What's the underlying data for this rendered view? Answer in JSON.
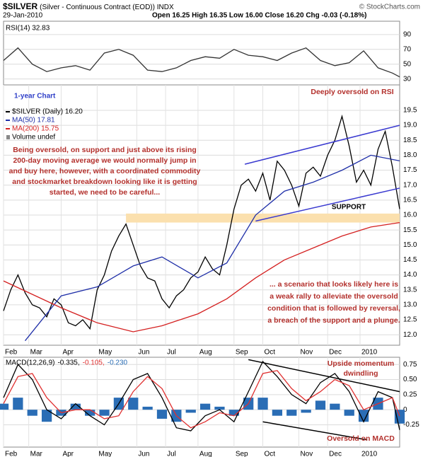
{
  "header": {
    "symbol": "$SILVER",
    "name": "(Silver - Continuous Contract (EOD)) INDX",
    "date": "29-Jan-2010",
    "quote": "Open 16.25 High 16.35 Low 16.00 Close 16.20 Chg -0.03 (-0.18%)",
    "copyright": "© StockCharts.com"
  },
  "chart_data": [
    {
      "type": "line",
      "title": "RSI(14) 32.83",
      "x": [
        0,
        2,
        4,
        6,
        8,
        10,
        12,
        14,
        16,
        18,
        20,
        22,
        24,
        26,
        28,
        30,
        32,
        34,
        36,
        38,
        40,
        42,
        44,
        46,
        48,
        50,
        52,
        54,
        55
      ],
      "series": [
        {
          "name": "RSI(14)",
          "color": "#333333",
          "values": [
            55,
            72,
            50,
            40,
            45,
            48,
            42,
            65,
            70,
            62,
            42,
            40,
            45,
            55,
            60,
            58,
            70,
            62,
            60,
            55,
            65,
            72,
            55,
            48,
            52,
            68,
            45,
            38,
            32.83
          ]
        }
      ],
      "xlim": [
        0,
        55
      ],
      "ylim": [
        22,
        108
      ],
      "yticks": [
        90,
        70,
        50,
        30
      ],
      "grid": true
    },
    {
      "type": "line",
      "x": [
        0,
        1,
        2,
        3,
        4,
        5,
        6,
        7,
        8,
        9,
        10,
        11,
        12,
        13,
        14,
        15,
        16,
        17,
        18,
        19,
        20,
        21,
        22,
        23,
        24,
        25,
        26,
        27,
        28,
        29,
        30,
        31,
        32,
        33,
        34,
        35,
        36,
        37,
        38,
        39,
        40,
        41,
        42,
        43,
        44,
        45,
        46,
        47,
        48,
        49,
        50,
        51,
        52,
        53,
        54,
        55
      ],
      "series": [
        {
          "name": "$SILVER (Daily) 16.20",
          "color": "#000000",
          "values": [
            12.8,
            13.5,
            14.0,
            13.4,
            13.0,
            12.9,
            12.6,
            13.2,
            13.0,
            12.4,
            12.3,
            12.5,
            12.2,
            13.5,
            14.0,
            14.8,
            15.3,
            15.7,
            15.0,
            14.3,
            13.9,
            13.8,
            13.2,
            12.9,
            13.3,
            13.5,
            13.9,
            14.1,
            14.6,
            14.2,
            14.0,
            15.0,
            16.2,
            17.0,
            17.2,
            16.8,
            17.4,
            16.5,
            17.8,
            17.5,
            17.0,
            16.3,
            17.4,
            17.6,
            17.3,
            18.0,
            18.5,
            19.3,
            18.3,
            17.1,
            17.5,
            17.0,
            18.2,
            18.8,
            17.6,
            16.2
          ]
        },
        {
          "name": "MA(50) 17.81",
          "color": "#1f2fa8",
          "x": [
            3,
            8,
            13,
            18,
            22,
            27,
            31,
            35,
            39,
            43,
            47,
            51,
            55
          ],
          "values": [
            11.8,
            13.3,
            13.6,
            14.3,
            14.6,
            13.9,
            14.4,
            16.0,
            16.8,
            17.1,
            17.5,
            18.0,
            17.81
          ]
        },
        {
          "name": "MA(200) 15.75",
          "color": "#d42020",
          "x": [
            0,
            8,
            13,
            18,
            22,
            27,
            31,
            35,
            39,
            43,
            47,
            51,
            55
          ],
          "values": [
            13.8,
            12.9,
            12.4,
            12.1,
            12.3,
            12.7,
            13.2,
            13.9,
            14.5,
            14.9,
            15.3,
            15.6,
            15.75
          ]
        }
      ],
      "legend_extra": "Volume undef",
      "bands": [
        {
          "x": [
            17,
            55
          ],
          "y": [
            15.75,
            16.05
          ],
          "color": "#fbe0ae"
        }
      ],
      "trendlines": [
        {
          "x": [
            33.5,
            55
          ],
          "y": [
            17.7,
            19.0
          ],
          "color": "#3a3ad0"
        },
        {
          "x": [
            35,
            55
          ],
          "y": [
            15.8,
            16.9
          ],
          "color": "#3a3ad0"
        }
      ],
      "annotations": {
        "chart_label": "1-year Chart",
        "rsi_note": "Deeply oversold on RSI",
        "support": "SUPPORT",
        "notes": [
          "Being oversold, on support and just above its rising",
          "200-day moving average we would normally jump in",
          "and buy here, however, with a coordinated commodity",
          "and stockmarket breakdown looking like it is getting",
          "started, we need to be careful..."
        ],
        "scenario": [
          "... a scenario that looks likely here is",
          "a weak rally to alleviate the oversold",
          "condition that is followed by reversal,",
          "a breach of the support and a plunge."
        ]
      },
      "xlim": [
        0,
        55
      ],
      "ylim": [
        11.65,
        20.35
      ],
      "yticks": [
        {
          "value": 19.5,
          "label": "19.5"
        },
        {
          "value": 19,
          "label": "19.0"
        },
        18.5,
        {
          "value": 18,
          "label": "18.0"
        },
        17.5,
        {
          "value": 17,
          "label": "17.0"
        },
        16.5,
        {
          "value": 16,
          "label": "16.0"
        },
        15.5,
        {
          "value": 15,
          "label": "15.0"
        },
        14.5,
        {
          "value": 14,
          "label": "14.0"
        },
        13.5,
        {
          "value": 13,
          "label": "13.0"
        },
        12.5,
        {
          "value": 12,
          "label": "12.0"
        }
      ],
      "xticks": [
        {
          "value": 0,
          "label": "Feb"
        },
        {
          "value": 3.5,
          "label": "Mar"
        },
        {
          "value": 8,
          "label": "Apr"
        },
        {
          "value": 13,
          "label": "May"
        },
        {
          "value": 18.5,
          "label": "Jun"
        },
        {
          "value": 22.5,
          "label": "Jul"
        },
        {
          "value": 27,
          "label": "Aug"
        },
        {
          "value": 32,
          "label": "Sep"
        },
        {
          "value": 36,
          "label": "Oct"
        },
        {
          "value": 41,
          "label": "Nov"
        },
        {
          "value": 45,
          "label": "Dec"
        },
        {
          "value": 49.5,
          "label": "2010"
        }
      ],
      "grid": true
    },
    {
      "type": "line",
      "title": "MACD(12,26,9)",
      "x": [
        0,
        2,
        4,
        6,
        8,
        10,
        12,
        14,
        16,
        18,
        20,
        22,
        24,
        26,
        28,
        30,
        32,
        34,
        36,
        38,
        40,
        42,
        44,
        46,
        48,
        50,
        52,
        54,
        55
      ],
      "series": [
        {
          "name": "-0.335,",
          "color": "#000000",
          "values": [
            0.2,
            0.75,
            0.5,
            0.0,
            -0.15,
            0.1,
            -0.1,
            -0.25,
            0.1,
            0.5,
            0.6,
            0.2,
            -0.3,
            -0.35,
            -0.1,
            0.0,
            -0.2,
            0.3,
            0.8,
            0.55,
            0.25,
            0.1,
            0.45,
            0.6,
            0.3,
            -0.2,
            0.3,
            0.2,
            -0.335
          ]
        },
        {
          "name": "-0.105,",
          "color": "#e03030",
          "values": [
            0.1,
            0.55,
            0.6,
            0.2,
            -0.05,
            0.0,
            0.0,
            -0.15,
            -0.1,
            0.3,
            0.55,
            0.35,
            -0.1,
            -0.3,
            -0.2,
            -0.05,
            -0.1,
            0.1,
            0.6,
            0.65,
            0.35,
            0.15,
            0.3,
            0.5,
            0.4,
            0.0,
            0.1,
            0.2,
            -0.105
          ]
        },
        {
          "name": "-0.230",
          "color": "#2a6db5",
          "type": "bar",
          "values": [
            0.1,
            0.2,
            -0.1,
            -0.2,
            -0.1,
            0.1,
            -0.1,
            -0.1,
            0.2,
            0.2,
            0.05,
            -0.15,
            -0.2,
            -0.05,
            0.1,
            0.05,
            -0.1,
            0.2,
            0.2,
            -0.1,
            -0.1,
            -0.05,
            0.15,
            0.1,
            -0.1,
            -0.2,
            0.2,
            0.0,
            -0.23
          ]
        }
      ],
      "trendlines": [
        {
          "x": [
            34,
            55
          ],
          "y": [
            0.83,
            0.3
          ],
          "color": "#000000"
        },
        {
          "x": [
            36,
            50.5
          ],
          "y": [
            -0.2,
            -0.5
          ],
          "color": "#000000"
        }
      ],
      "annotations": {
        "momentum": [
          "Upside momentum",
          "dwindling"
        ],
        "oversold": "Oversold on MACD"
      },
      "xlim": [
        0,
        55
      ],
      "ylim": [
        -0.62,
        0.87
      ],
      "yticks": [
        0.75,
        {
          "value": 0.5,
          "label": "0.50"
        },
        0.25,
        0,
        -0.25
      ],
      "xticks": [
        {
          "value": 0,
          "label": "Feb"
        },
        {
          "value": 3.5,
          "label": "Mar"
        },
        {
          "value": 8,
          "label": "Apr"
        },
        {
          "value": 13,
          "label": "May"
        },
        {
          "value": 18.5,
          "label": "Jun"
        },
        {
          "value": 22.5,
          "label": "Jul"
        },
        {
          "value": 27,
          "label": "Aug"
        },
        {
          "value": 32,
          "label": "Sep"
        },
        {
          "value": 36,
          "label": "Oct"
        },
        {
          "value": 41,
          "label": "Nov"
        },
        {
          "value": 45,
          "label": "Dec"
        },
        {
          "value": 49.5,
          "label": "2010"
        }
      ],
      "grid": true
    }
  ]
}
